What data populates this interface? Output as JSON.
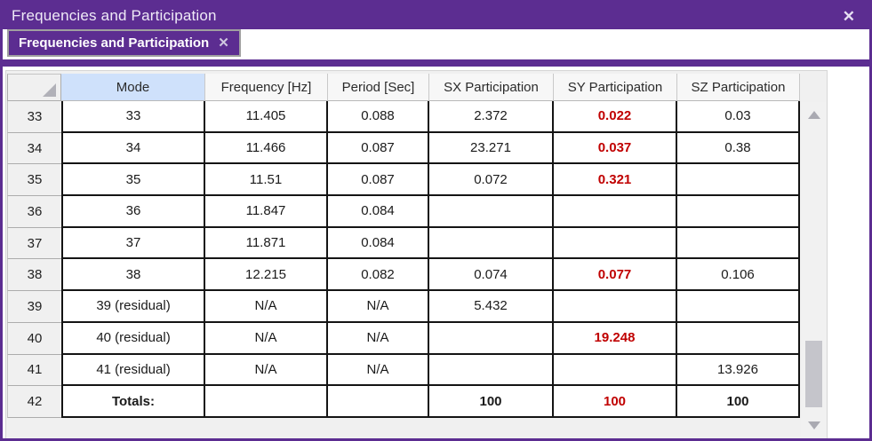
{
  "window": {
    "title": "Frequencies and Participation",
    "close_icon": "✕"
  },
  "tab": {
    "label": "Frequencies and Participation",
    "close_icon": "✕"
  },
  "table": {
    "headers": [
      "Mode",
      "Frequency [Hz]",
      "Period [Sec]",
      "SX Participation",
      "SY Participation",
      "SZ Participation"
    ],
    "rows": [
      {
        "num": "33",
        "cells": [
          {
            "v": "33"
          },
          {
            "v": "11.405"
          },
          {
            "v": "0.088"
          },
          {
            "v": "2.372"
          },
          {
            "v": "0.022",
            "red": true
          },
          {
            "v": "0.03"
          }
        ]
      },
      {
        "num": "34",
        "cells": [
          {
            "v": "34"
          },
          {
            "v": "11.466"
          },
          {
            "v": "0.087"
          },
          {
            "v": "23.271"
          },
          {
            "v": "0.037",
            "red": true
          },
          {
            "v": "0.38"
          }
        ]
      },
      {
        "num": "35",
        "cells": [
          {
            "v": "35"
          },
          {
            "v": "11.51"
          },
          {
            "v": "0.087"
          },
          {
            "v": "0.072"
          },
          {
            "v": "0.321",
            "red": true
          },
          {
            "v": ""
          }
        ]
      },
      {
        "num": "36",
        "cells": [
          {
            "v": "36"
          },
          {
            "v": "11.847"
          },
          {
            "v": "0.084"
          },
          {
            "v": ""
          },
          {
            "v": ""
          },
          {
            "v": ""
          }
        ]
      },
      {
        "num": "37",
        "cells": [
          {
            "v": "37"
          },
          {
            "v": "11.871"
          },
          {
            "v": "0.084"
          },
          {
            "v": ""
          },
          {
            "v": ""
          },
          {
            "v": ""
          }
        ]
      },
      {
        "num": "38",
        "cells": [
          {
            "v": "38"
          },
          {
            "v": "12.215"
          },
          {
            "v": "0.082"
          },
          {
            "v": "0.074"
          },
          {
            "v": "0.077",
            "red": true
          },
          {
            "v": "0.106"
          }
        ]
      },
      {
        "num": "39",
        "cells": [
          {
            "v": "39 (residual)"
          },
          {
            "v": "N/A"
          },
          {
            "v": "N/A"
          },
          {
            "v": "5.432"
          },
          {
            "v": ""
          },
          {
            "v": ""
          }
        ]
      },
      {
        "num": "40",
        "cells": [
          {
            "v": "40 (residual)"
          },
          {
            "v": "N/A"
          },
          {
            "v": "N/A"
          },
          {
            "v": ""
          },
          {
            "v": "19.248",
            "red": true
          },
          {
            "v": ""
          }
        ]
      },
      {
        "num": "41",
        "cells": [
          {
            "v": "41 (residual)"
          },
          {
            "v": "N/A"
          },
          {
            "v": "N/A"
          },
          {
            "v": ""
          },
          {
            "v": ""
          },
          {
            "v": "13.926"
          }
        ]
      },
      {
        "num": "42",
        "cells": [
          {
            "v": "Totals:",
            "bold": true
          },
          {
            "v": ""
          },
          {
            "v": ""
          },
          {
            "v": "100",
            "bold": true
          },
          {
            "v": "100",
            "red": true,
            "bold": true
          },
          {
            "v": "100",
            "bold": true
          }
        ]
      }
    ]
  },
  "colors": {
    "accent_purple": "#5C2D91",
    "highlight_red": "#C00000",
    "row_alt_cyan": "#DCF8FB",
    "mode_header_blue": "#CFE1FB"
  }
}
